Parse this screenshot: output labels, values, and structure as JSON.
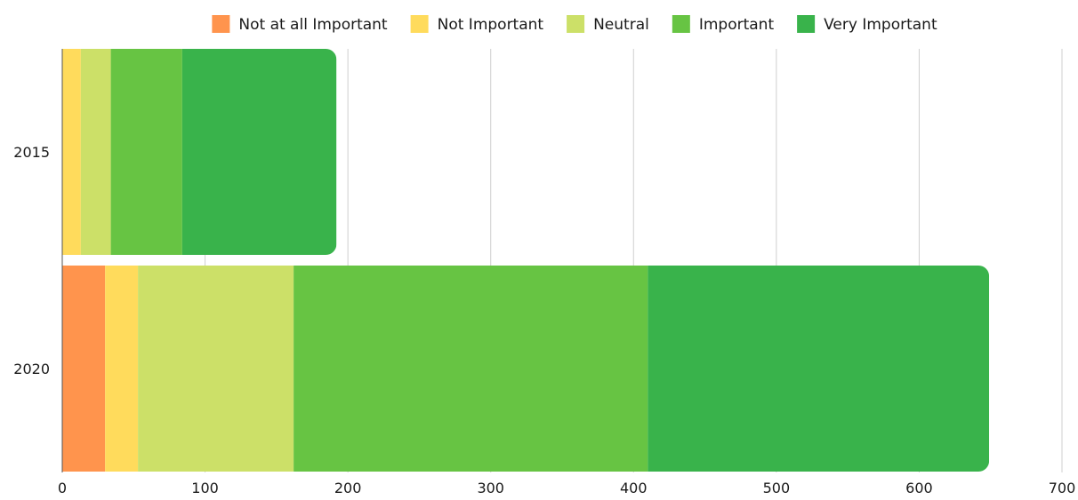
{
  "chart_data": {
    "type": "bar",
    "orientation": "horizontal",
    "stacked": true,
    "categories": [
      "2015",
      "2020"
    ],
    "series": [
      {
        "name": "Not at all Important",
        "color": "#ff944d",
        "values": [
          0,
          30
        ]
      },
      {
        "name": "Not Important",
        "color": "#ffdb5c",
        "values": [
          13,
          23
        ]
      },
      {
        "name": "Neutral",
        "color": "#cce068",
        "values": [
          21,
          109
        ]
      },
      {
        "name": "Important",
        "color": "#67c443",
        "values": [
          50,
          248
        ]
      },
      {
        "name": "Very Important",
        "color": "#39b34b",
        "values": [
          108,
          239
        ]
      }
    ],
    "xlim": [
      0,
      700
    ],
    "xticks": [
      0,
      100,
      200,
      300,
      400,
      500,
      600,
      700
    ],
    "grid": "vertical",
    "legend_position": "top-center",
    "title": "",
    "xlabel": "",
    "ylabel": ""
  }
}
